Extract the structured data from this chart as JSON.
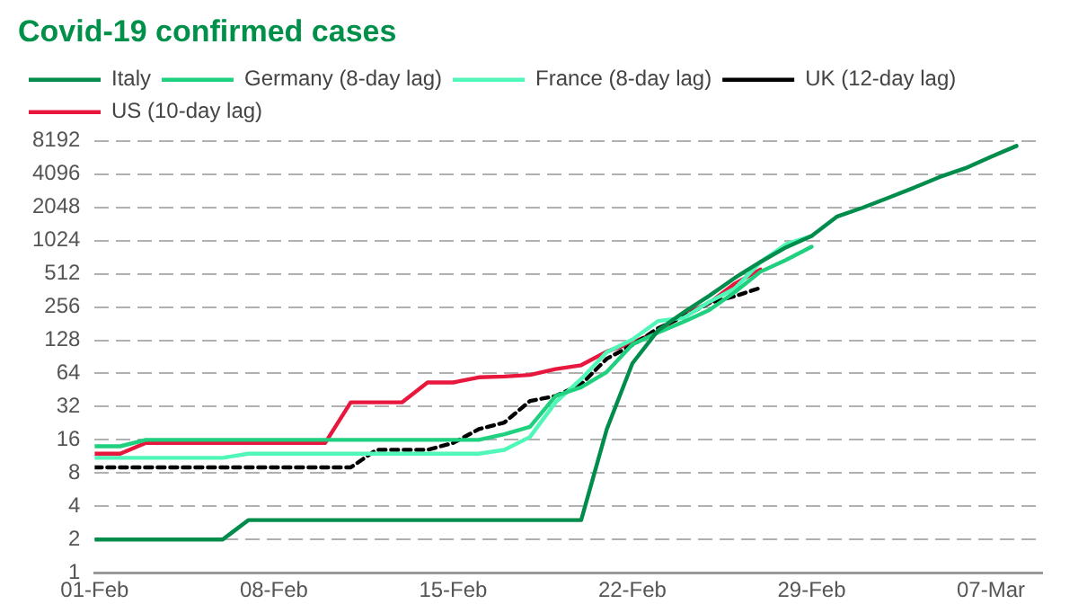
{
  "chart_data": {
    "type": "line",
    "title": "Covid-19 confirmed cases",
    "x": [
      "--02-01",
      "--02-02",
      "--02-03",
      "--02-04",
      "--02-05",
      "--02-06",
      "--02-07",
      "--02-08",
      "--02-09",
      "--02-10",
      "--02-11",
      "--02-12",
      "--02-13",
      "--02-14",
      "--02-15",
      "--02-16",
      "--02-17",
      "--02-18",
      "--02-19",
      "--02-20",
      "--02-21",
      "--02-22",
      "--02-23",
      "--02-24",
      "--02-25",
      "--02-26",
      "--02-27",
      "--02-28",
      "--02-29",
      "--03-01",
      "--03-02",
      "--03-03",
      "--03-04",
      "--03-05",
      "--03-06",
      "--03-07",
      "--03-08"
    ],
    "series": [
      {
        "name": "Italy",
        "color": "#008c4a",
        "values": [
          2,
          2,
          2,
          2,
          2,
          2,
          3,
          3,
          3,
          3,
          3,
          3,
          3,
          3,
          3,
          3,
          3,
          3,
          3,
          3,
          20,
          79,
          157,
          229,
          323,
          470,
          655,
          889,
          1128,
          1694,
          2036,
          2502,
          3089,
          3858,
          4636,
          5883,
          7375
        ]
      },
      {
        "name": "Germany (8-day lag)",
        "color": "#1fd07e",
        "values": [
          14,
          14,
          16,
          16,
          16,
          16,
          16,
          16,
          16,
          16,
          16,
          16,
          16,
          16,
          16,
          16,
          18,
          21,
          40,
          48,
          66,
          117,
          150,
          188,
          240,
          349,
          534,
          684,
          900,
          null,
          null,
          null,
          null,
          null,
          null,
          null,
          null
        ]
      },
      {
        "name": "France (8-day lag)",
        "color": "#50f7b8",
        "values": [
          11,
          11,
          11,
          11,
          11,
          11,
          12,
          12,
          12,
          12,
          12,
          12,
          12,
          12,
          12,
          12,
          13,
          17,
          35,
          57,
          100,
          130,
          191,
          204,
          285,
          377,
          653,
          949,
          1126,
          null,
          null,
          null,
          null,
          null,
          null,
          null,
          null
        ]
      },
      {
        "name": "UK (12-day lag)",
        "color": "#000000",
        "line_style": "dashed",
        "values": [
          9,
          9,
          9,
          9,
          9,
          9,
          9,
          9,
          9,
          9,
          9,
          13,
          13,
          13,
          15,
          20,
          23,
          36,
          40,
          51,
          87,
          116,
          164,
          209,
          278,
          321,
          382,
          null,
          null,
          null,
          null,
          null,
          null,
          null,
          null,
          null,
          null
        ]
      },
      {
        "name": "US (10-day lag)",
        "color": "#e8173e",
        "values": [
          12,
          12,
          15,
          15,
          15,
          15,
          15,
          15,
          15,
          15,
          35,
          35,
          35,
          53,
          53,
          59,
          60,
          62,
          70,
          76,
          101,
          122,
          153,
          221,
          278,
          417,
          560,
          null,
          null,
          null,
          null,
          null,
          null,
          null,
          null,
          null,
          null
        ]
      }
    ],
    "xlim": [
      "--02-01",
      "--03-09"
    ],
    "xticks": [
      {
        "value": "--02-01",
        "label": "01-Feb"
      },
      {
        "value": "--02-08",
        "label": "08-Feb"
      },
      {
        "value": "--02-15",
        "label": "15-Feb"
      },
      {
        "value": "--02-22",
        "label": "22-Feb"
      },
      {
        "value": "--02-29",
        "label": "29-Feb"
      },
      {
        "value": "--03-07",
        "label": "07-Mar"
      }
    ],
    "ylim": [
      1,
      8192
    ],
    "yticks": [
      1,
      2,
      4,
      8,
      16,
      32,
      64,
      128,
      256,
      512,
      1024,
      2048,
      4096,
      8192
    ],
    "log": "y",
    "grid": "y",
    "legend": "top",
    "marker": "none"
  }
}
